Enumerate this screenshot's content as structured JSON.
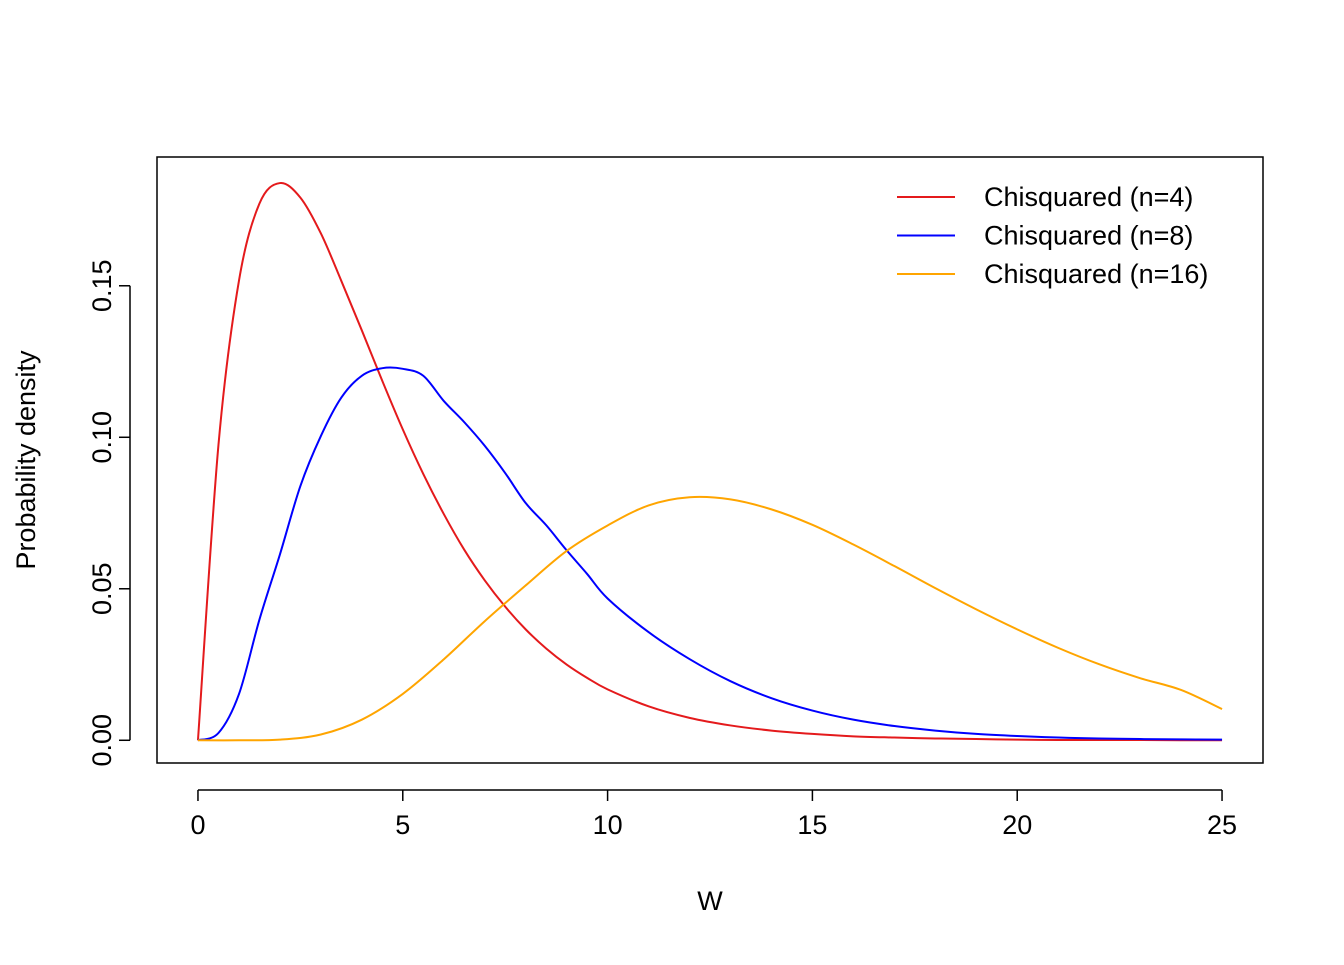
{
  "chart_data": {
    "type": "line",
    "title": "",
    "xlabel": "W",
    "ylabel": "Probability density",
    "xlim": [
      -1,
      26
    ],
    "ylim": [
      -0.0075,
      0.1925
    ],
    "xticks": [
      0,
      5,
      10,
      15,
      20,
      25
    ],
    "xtick_labels": [
      "0",
      "5",
      "10",
      "15",
      "20",
      "25"
    ],
    "yticks": [
      0.0,
      0.05,
      0.1,
      0.15
    ],
    "ytick_labels": [
      "0.00",
      "0.05",
      "0.10",
      "0.15"
    ],
    "grid": false,
    "legend_position": "top-right",
    "series": [
      {
        "name": "Chisquared (n=4)",
        "color": "#e41a1c",
        "x": [
          0,
          0.5,
          1,
          1.5,
          2,
          2.5,
          3,
          3.5,
          4,
          4.5,
          5,
          5.5,
          6,
          6.5,
          7,
          7.5,
          8,
          8.5,
          9,
          9.5,
          10,
          11,
          12,
          13,
          14,
          15,
          16,
          17,
          18,
          19,
          20,
          21,
          22,
          23,
          24,
          25
        ],
        "y": [
          0,
          0.0974,
          0.1516,
          0.1771,
          0.1839,
          0.1791,
          0.1673,
          0.1516,
          0.1353,
          0.1186,
          0.1026,
          0.0879,
          0.0747,
          0.0629,
          0.0528,
          0.0441,
          0.0366,
          0.0303,
          0.025,
          0.0206,
          0.0168,
          0.0112,
          0.0074,
          0.0049,
          0.0032,
          0.0021,
          0.0013,
          0.0009,
          0.0006,
          0.0004,
          0.0002,
          0.0001,
          0.0001,
          0.0001,
          0,
          0
        ]
      },
      {
        "name": "Chisquared (n=8)",
        "color": "#0000ff",
        "x": [
          0,
          0.5,
          1,
          1.5,
          2,
          2.5,
          3,
          3.5,
          4,
          4.5,
          5,
          5.5,
          6,
          6.5,
          7,
          7.5,
          8,
          8.5,
          9,
          9.5,
          10,
          11,
          12,
          13,
          14,
          15,
          16,
          17,
          18,
          19,
          20,
          21,
          22,
          23,
          24,
          25
        ],
        "y": [
          0,
          0.0024,
          0.0152,
          0.0398,
          0.0613,
          0.0839,
          0.1004,
          0.1131,
          0.1203,
          0.1228,
          0.1226,
          0.1203,
          0.112,
          0.105,
          0.0972,
          0.0882,
          0.0783,
          0.071,
          0.0627,
          0.0549,
          0.0468,
          0.0357,
          0.0268,
          0.0195,
          0.0139,
          0.0098,
          0.0068,
          0.0047,
          0.0032,
          0.0021,
          0.0014,
          0.0009,
          0.0006,
          0.0004,
          0.0003,
          0.0002
        ]
      },
      {
        "name": "Chisquared (n=16)",
        "color": "#ffa500",
        "x": [
          0,
          1,
          2,
          3,
          4,
          5,
          6,
          7,
          8,
          9,
          10,
          11,
          12,
          13,
          14,
          15,
          16,
          17,
          18,
          19,
          20,
          21,
          22,
          23,
          24,
          25
        ],
        "y": [
          0,
          0,
          0.0002,
          0.0019,
          0.0068,
          0.0153,
          0.0267,
          0.0393,
          0.0511,
          0.0625,
          0.0709,
          0.0775,
          0.0802,
          0.0795,
          0.0762,
          0.0711,
          0.0646,
          0.0575,
          0.0502,
          0.0432,
          0.0366,
          0.0305,
          0.0251,
          0.0205,
          0.0166,
          0.0103
        ]
      }
    ]
  }
}
